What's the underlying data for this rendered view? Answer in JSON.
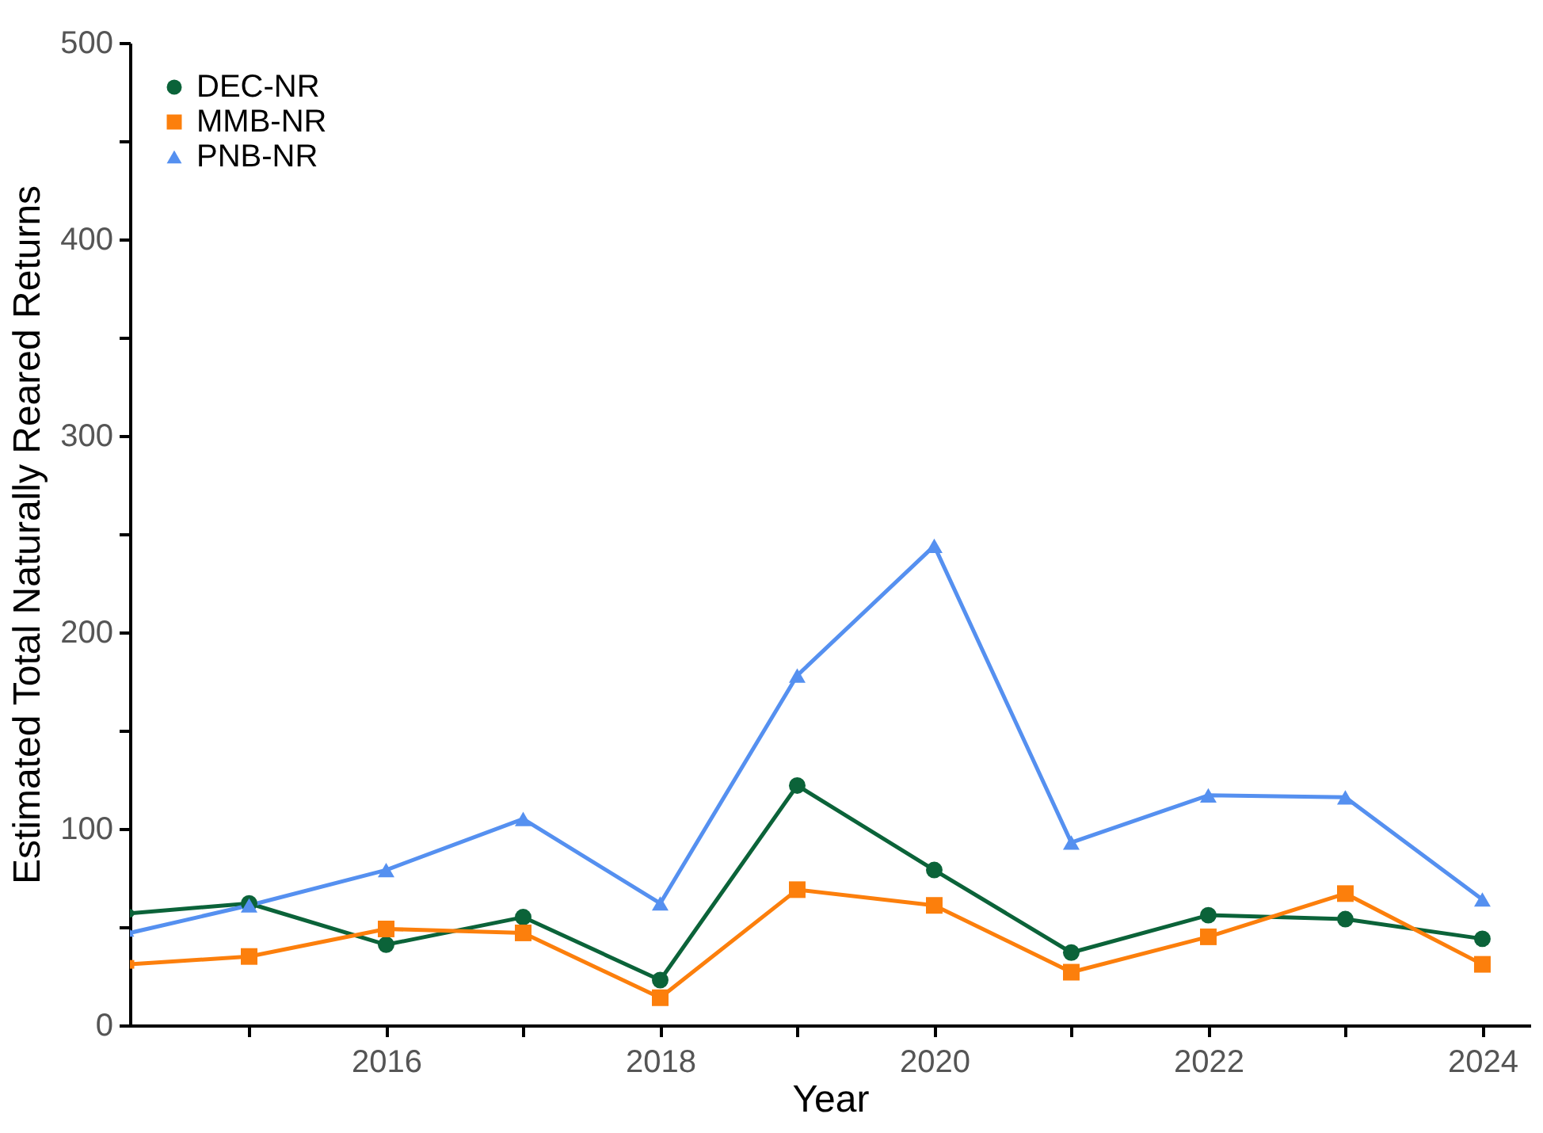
{
  "chart_data": {
    "type": "line",
    "xlabel": "Year",
    "ylabel": "Estimated Total Naturally Reared Returns",
    "x": [
      2014.13,
      2015,
      2016,
      2017,
      2018,
      2019,
      2020,
      2021,
      2022,
      2023,
      2024
    ],
    "series": [
      {
        "name": "DEC-NR",
        "color": "#0b6339",
        "marker": "circle",
        "values": [
          57,
          62,
          41,
          55,
          23,
          122,
          79,
          37,
          56,
          54,
          44
        ]
      },
      {
        "name": "MMB-NR",
        "color": "#fc7f0c",
        "marker": "square",
        "values": [
          31,
          35,
          49,
          47,
          14,
          69,
          61,
          27,
          45,
          67,
          31
        ]
      },
      {
        "name": "PNB-NR",
        "color": "#5590f0",
        "marker": "triangle",
        "values": [
          47,
          61,
          79,
          105,
          62,
          178,
          244,
          93,
          117,
          116,
          64
        ]
      }
    ],
    "xlim": [
      2014.13,
      2024.35
    ],
    "xticks": [
      {
        "value": 2015,
        "label": null
      },
      2016,
      {
        "value": 2017,
        "label": null
      },
      2018,
      {
        "value": 2019,
        "label": null
      },
      2020,
      {
        "value": 2021,
        "label": null
      },
      2022,
      {
        "value": 2023,
        "label": null
      },
      2024
    ],
    "ylim": [
      0,
      500
    ],
    "yticks": [
      0,
      {
        "value": 50,
        "label": null
      },
      100,
      {
        "value": 150,
        "label": null
      },
      200,
      {
        "value": 250,
        "label": null
      },
      300,
      {
        "value": 350,
        "label": null
      },
      400,
      {
        "value": 450,
        "label": null
      },
      500
    ],
    "grid": false,
    "legend": "top left",
    "line_style": "solid"
  }
}
